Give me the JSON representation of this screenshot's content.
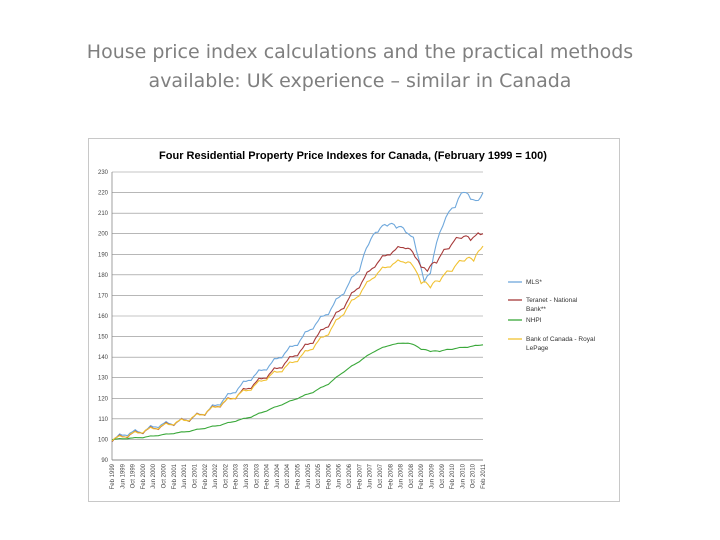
{
  "slide": {
    "title_line1": "House price index calculations and the practical methods",
    "title_line2": "available: UK experience – similar in Canada"
  },
  "chart_data": {
    "type": "line",
    "title": "Four Residential Property Price Indexes for Canada, (February 1999 = 100)",
    "xlabel": "",
    "ylabel": "",
    "ylim": [
      90,
      230
    ],
    "y_ticks": [
      90,
      100,
      110,
      120,
      130,
      140,
      150,
      160,
      170,
      180,
      190,
      200,
      210,
      220,
      230
    ],
    "grid": true,
    "legend_position": "right",
    "x_tick_labels": [
      "Feb 1999",
      "Jun 1999",
      "Oct 1999",
      "Feb 2000",
      "Jun 2000",
      "Oct 2000",
      "Feb 2001",
      "Jun 2001",
      "Oct 2001",
      "Feb 2002",
      "Jun 2002",
      "Oct 2002",
      "Feb 2003",
      "Jun 2003",
      "Oct 2003",
      "Feb 2004",
      "Jun 2004",
      "Oct 2004",
      "Feb 2005",
      "Jun 2005",
      "Oct 2005",
      "Feb 2006",
      "Jun 2006",
      "Oct 2006",
      "Feb 2007",
      "Jun 2007",
      "Oct 2007",
      "Feb 2008",
      "Jun 2008",
      "Oct 2008",
      "Feb 2009",
      "Jun 2009",
      "Oct 2009",
      "Feb 2010",
      "Jun 2010",
      "Oct 2010",
      "Feb 2011"
    ],
    "series": [
      {
        "name": "MLS*",
        "color": "#6fa8dc",
        "points": [
          [
            1999.0,
            100
          ],
          [
            1999.5,
            103
          ],
          [
            2000.0,
            104
          ],
          [
            2000.5,
            107
          ],
          [
            2001.0,
            108
          ],
          [
            2001.5,
            110
          ],
          [
            2002.0,
            113
          ],
          [
            2002.5,
            118
          ],
          [
            2003.0,
            124
          ],
          [
            2003.5,
            130
          ],
          [
            2004.0,
            135
          ],
          [
            2004.5,
            141
          ],
          [
            2005.0,
            147
          ],
          [
            2005.5,
            155
          ],
          [
            2006.0,
            162
          ],
          [
            2006.5,
            172
          ],
          [
            2007.0,
            183
          ],
          [
            2007.3,
            196
          ],
          [
            2007.6,
            202
          ],
          [
            2007.9,
            205
          ],
          [
            2008.2,
            204
          ],
          [
            2008.5,
            202
          ],
          [
            2008.75,
            197
          ],
          [
            2008.95,
            185
          ],
          [
            2009.1,
            178
          ],
          [
            2009.3,
            182
          ],
          [
            2009.5,
            197
          ],
          [
            2009.7,
            205
          ],
          [
            2009.9,
            212
          ],
          [
            2010.1,
            214
          ],
          [
            2010.3,
            221
          ],
          [
            2010.6,
            218
          ],
          [
            2010.85,
            215
          ],
          [
            2011.0,
            220
          ]
        ]
      },
      {
        "name": "Teranet - National Bank**",
        "color": "#a63a3a",
        "points": [
          [
            1999.0,
            100
          ],
          [
            1999.5,
            102
          ],
          [
            2000.0,
            104
          ],
          [
            2000.5,
            106
          ],
          [
            2001.0,
            108
          ],
          [
            2001.5,
            110
          ],
          [
            2002.0,
            113
          ],
          [
            2002.5,
            117
          ],
          [
            2003.0,
            121
          ],
          [
            2003.5,
            126
          ],
          [
            2004.0,
            131
          ],
          [
            2004.5,
            136
          ],
          [
            2005.0,
            142
          ],
          [
            2005.5,
            148
          ],
          [
            2006.0,
            156
          ],
          [
            2006.5,
            165
          ],
          [
            2007.0,
            175
          ],
          [
            2007.5,
            185
          ],
          [
            2008.0,
            191
          ],
          [
            2008.5,
            194
          ],
          [
            2008.8,
            190
          ],
          [
            2009.0,
            185
          ],
          [
            2009.2,
            183
          ],
          [
            2009.5,
            187
          ],
          [
            2009.9,
            194
          ],
          [
            2010.3,
            199
          ],
          [
            2010.6,
            198
          ],
          [
            2011.0,
            200
          ]
        ]
      },
      {
        "name": "NHPI",
        "color": "#3aa83a",
        "points": [
          [
            1999.0,
            100
          ],
          [
            1999.5,
            100.5
          ],
          [
            2000.0,
            101
          ],
          [
            2000.5,
            102
          ],
          [
            2001.0,
            103
          ],
          [
            2001.5,
            104
          ],
          [
            2002.0,
            105.5
          ],
          [
            2002.5,
            107
          ],
          [
            2003.0,
            109
          ],
          [
            2003.5,
            111
          ],
          [
            2004.0,
            114
          ],
          [
            2004.5,
            117
          ],
          [
            2005.0,
            120
          ],
          [
            2005.5,
            123
          ],
          [
            2006.0,
            127
          ],
          [
            2006.5,
            133
          ],
          [
            2007.0,
            138
          ],
          [
            2007.5,
            143
          ],
          [
            2008.0,
            146
          ],
          [
            2008.5,
            147
          ],
          [
            2008.8,
            146
          ],
          [
            2009.0,
            144
          ],
          [
            2009.3,
            143
          ],
          [
            2009.6,
            143
          ],
          [
            2010.0,
            144
          ],
          [
            2010.5,
            145
          ],
          [
            2011.0,
            146
          ]
        ]
      },
      {
        "name": "Bank of Canada - Royal LePage",
        "color": "#f1c232",
        "points": [
          [
            1999.0,
            100
          ],
          [
            1999.5,
            102
          ],
          [
            2000.0,
            104
          ],
          [
            2000.5,
            106
          ],
          [
            2001.0,
            108
          ],
          [
            2001.5,
            110
          ],
          [
            2002.0,
            113
          ],
          [
            2002.5,
            117
          ],
          [
            2003.0,
            121
          ],
          [
            2003.5,
            125
          ],
          [
            2004.0,
            130
          ],
          [
            2004.5,
            134
          ],
          [
            2005.0,
            139
          ],
          [
            2005.5,
            145
          ],
          [
            2006.0,
            152
          ],
          [
            2006.5,
            162
          ],
          [
            2007.0,
            171
          ],
          [
            2007.5,
            180
          ],
          [
            2008.0,
            185
          ],
          [
            2008.5,
            187
          ],
          [
            2008.8,
            184
          ],
          [
            2009.0,
            177
          ],
          [
            2009.3,
            175
          ],
          [
            2009.6,
            178
          ],
          [
            2010.0,
            183
          ],
          [
            2010.4,
            188
          ],
          [
            2010.7,
            188
          ],
          [
            2011.0,
            194
          ]
        ]
      }
    ]
  }
}
